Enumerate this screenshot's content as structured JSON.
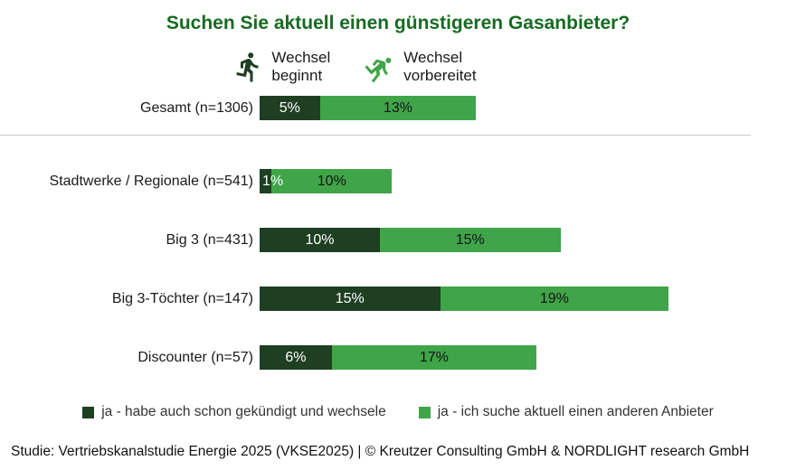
{
  "title": "Suchen Sie aktuell einen günstigeren Gasanbieter?",
  "icon_legend": [
    {
      "icon": "runner-start-icon",
      "label_line1": "Wechsel",
      "label_line2": "beginnt",
      "color": "#1e3f22"
    },
    {
      "icon": "runner-crouch-icon",
      "label_line1": "Wechsel",
      "label_line2": "vorbereitet",
      "color": "#3fa548"
    }
  ],
  "chart_data": {
    "type": "bar",
    "orientation": "horizontal",
    "stacked": true,
    "title": "Suchen Sie aktuell einen günstigeren Gasanbieter?",
    "categories": [
      "Gesamt (n=1306)",
      "Stadtwerke / Regionale (n=541)",
      "Big 3 (n=431)",
      "Big 3-Töchter (n=147)",
      "Discounter (n=57)"
    ],
    "series": [
      {
        "name": "ja - habe auch schon gekündigt und wechsele",
        "color": "#1e3f22",
        "values": [
          5,
          1,
          10,
          15,
          6
        ]
      },
      {
        "name": "ja - ich suche aktuell einen anderen Anbieter",
        "color": "#3fa548",
        "values": [
          13,
          10,
          15,
          19,
          17
        ]
      }
    ],
    "value_suffix": "%",
    "xlim": [
      0,
      45
    ],
    "grid": false,
    "legend_position": "bottom"
  },
  "legend": [
    {
      "label": "ja - habe auch schon gekündigt und wechsele",
      "color": "#1e3f22"
    },
    {
      "label": "ja - ich suche aktuell einen anderen Anbieter",
      "color": "#3fa548"
    }
  ],
  "footer": "Studie: Vertriebskanalstudie Energie 2025 (VKSE2025) | © Kreutzer Consulting GmbH & NORDLIGHT research GmbH"
}
